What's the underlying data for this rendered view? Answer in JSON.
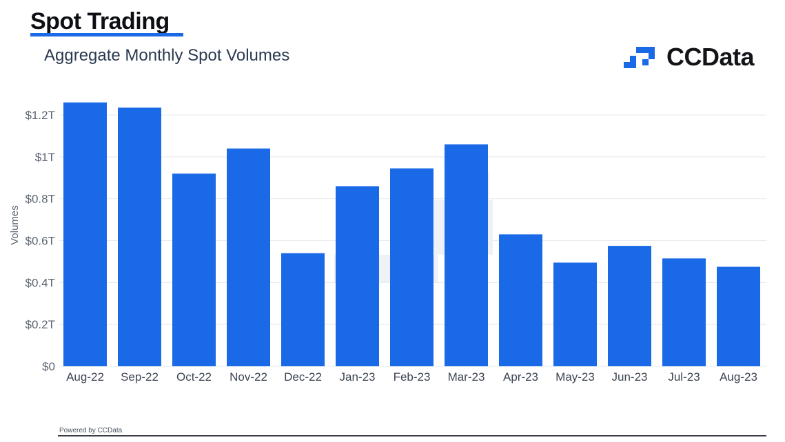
{
  "header": {
    "title": "Spot Trading",
    "subtitle": "Aggregate Monthly Spot Volumes"
  },
  "logo": {
    "text": "CCData",
    "icon": "ccdata-logo-icon",
    "color": "#1a6ae8"
  },
  "footer": {
    "text": "Powered by CCData"
  },
  "colors": {
    "bar": "#1a6ae8",
    "grid": "#e6e8ec",
    "axis_text": "#5b6472"
  },
  "chart_data": {
    "type": "bar",
    "title": "",
    "xlabel": "",
    "ylabel": "Volumes",
    "categories": [
      "Aug-22",
      "Sep-22",
      "Oct-22",
      "Nov-22",
      "Dec-22",
      "Jan-23",
      "Feb-23",
      "Mar-23",
      "Apr-23",
      "May-23",
      "Jun-23",
      "Jul-23",
      "Aug-23"
    ],
    "values": [
      1.26,
      1.235,
      0.92,
      1.04,
      0.54,
      0.86,
      0.945,
      1.06,
      0.63,
      0.495,
      0.575,
      0.515,
      0.475
    ],
    "unit": "trillion USD",
    "ylim": [
      0,
      1.2
    ],
    "yticks": [
      0,
      0.2,
      0.4,
      0.6,
      0.8,
      1.0,
      1.2
    ],
    "ytick_labels": [
      "$0",
      "$0.2T",
      "$0.4T",
      "$0.6T",
      "$0.8T",
      "$1T",
      "$1.2T"
    ],
    "grid": true,
    "legend": "none"
  }
}
